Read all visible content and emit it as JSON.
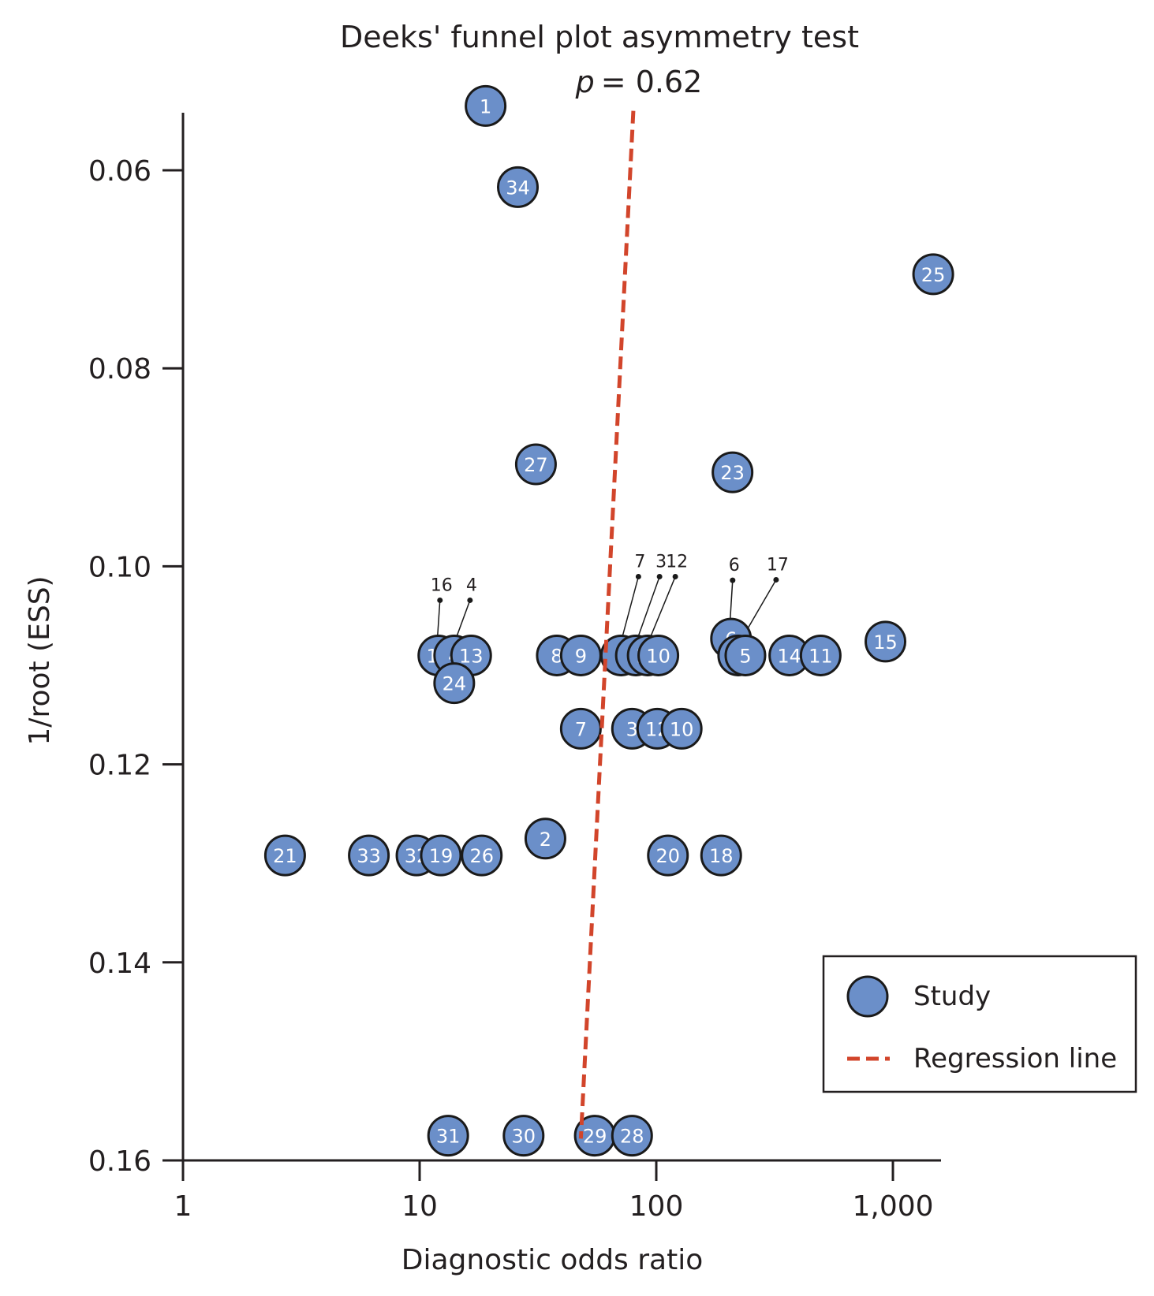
{
  "chart_data": {
    "type": "scatter",
    "title": "Deeks' funnel plot asymmetry test",
    "p_label": "p",
    "p_value_text": "= 0.62",
    "xlabel": "Diagnostic odds ratio",
    "ylabel": "1/root (ESS)",
    "x_scale": "log",
    "y_inverted": true,
    "xlim": [
      1,
      1500
    ],
    "ylim": [
      0.054,
      0.16
    ],
    "x_ticks": [
      1,
      10,
      100,
      1000
    ],
    "x_tick_labels": [
      "1",
      "10",
      "100",
      "1,000"
    ],
    "y_ticks": [
      0.06,
      0.08,
      0.1,
      0.12,
      0.14,
      0.16
    ],
    "y_tick_labels": [
      "0.06",
      "0.08",
      "0.10",
      "0.12",
      "0.14",
      "0.16"
    ],
    "grid": false,
    "legend_position": "bottom-right",
    "legend": [
      {
        "label": "Study",
        "kind": "marker"
      },
      {
        "label": "Regression line",
        "kind": "dashed-line"
      }
    ],
    "colors": {
      "point_fill": "#6b8fc9",
      "point_stroke": "#1a1a1a",
      "regression": "#d2452b"
    },
    "regression_line": {
      "x": [
        80,
        48
      ],
      "y": [
        0.054,
        0.1578
      ]
    },
    "points": [
      {
        "label": "1",
        "x": 19,
        "y": 0.0535
      },
      {
        "label": "34",
        "x": 26,
        "y": 0.0617
      },
      {
        "label": "25",
        "x": 1480,
        "y": 0.0705
      },
      {
        "label": "27",
        "x": 31,
        "y": 0.0897
      },
      {
        "label": "23",
        "x": 210,
        "y": 0.0905
      },
      {
        "label": "16",
        "x": 12,
        "y": 0.109
      },
      {
        "label": "4",
        "x": 14,
        "y": 0.109
      },
      {
        "label": "13",
        "x": 16.5,
        "y": 0.109
      },
      {
        "label": "24",
        "x": 14,
        "y": 0.1118
      },
      {
        "label": "8",
        "x": 38,
        "y": 0.109
      },
      {
        "label": "9",
        "x": 48,
        "y": 0.109
      },
      {
        "label": "7",
        "x": 71,
        "y": 0.109
      },
      {
        "label": "3",
        "x": 82,
        "y": 0.109
      },
      {
        "label": "12",
        "x": 92,
        "y": 0.109
      },
      {
        "label": "10",
        "x": 102,
        "y": 0.109
      },
      {
        "label": "6",
        "x": 207,
        "y": 0.1073
      },
      {
        "label": "17",
        "x": 222,
        "y": 0.109
      },
      {
        "label": "5",
        "x": 238,
        "y": 0.109
      },
      {
        "label": "14",
        "x": 365,
        "y": 0.109
      },
      {
        "label": "11",
        "x": 495,
        "y": 0.109
      },
      {
        "label": "15",
        "x": 930,
        "y": 0.1076
      },
      {
        "label": "7",
        "x": 48,
        "y": 0.1164
      },
      {
        "label": "3",
        "x": 79,
        "y": 0.1164
      },
      {
        "label": "12",
        "x": 101,
        "y": 0.1164
      },
      {
        "label": "10",
        "x": 128,
        "y": 0.1164
      },
      {
        "label": "21",
        "x": 2.7,
        "y": 0.1292
      },
      {
        "label": "33",
        "x": 6.1,
        "y": 0.1292
      },
      {
        "label": "32",
        "x": 9.7,
        "y": 0.1292
      },
      {
        "label": "19",
        "x": 12.3,
        "y": 0.1292
      },
      {
        "label": "26",
        "x": 18.3,
        "y": 0.1292
      },
      {
        "label": "2",
        "x": 34,
        "y": 0.1275
      },
      {
        "label": "20",
        "x": 112,
        "y": 0.1292
      },
      {
        "label": "18",
        "x": 188,
        "y": 0.1292
      },
      {
        "label": "31",
        "x": 13.2,
        "y": 0.1575
      },
      {
        "label": "30",
        "x": 27.5,
        "y": 0.1575
      },
      {
        "label": "29",
        "x": 55,
        "y": 0.1575
      },
      {
        "label": "28",
        "x": 79,
        "y": 0.1575
      }
    ],
    "callouts": [
      {
        "label": "16",
        "target_index": 5
      },
      {
        "label": "4",
        "target_index": 6
      },
      {
        "label": "7",
        "target_index": 11
      },
      {
        "label": "3",
        "target_index": 12
      },
      {
        "label": "12",
        "target_index": 13
      },
      {
        "label": "6",
        "target_index": 15
      },
      {
        "label": "17",
        "target_index": 16
      }
    ]
  }
}
